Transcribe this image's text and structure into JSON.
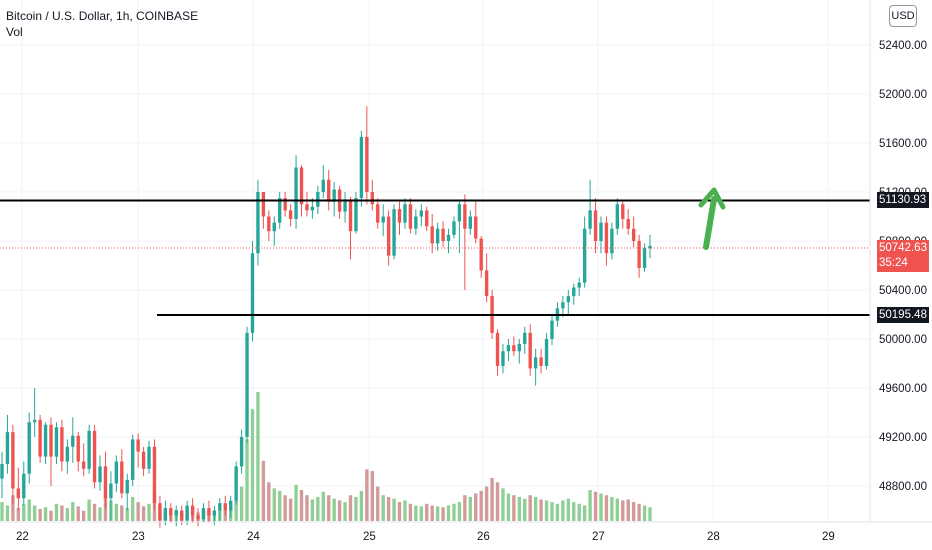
{
  "legend": {
    "title": "Bitcoin / U.S. Dollar, 1h, COINBASE",
    "volume_label": "Vol"
  },
  "axis": {
    "currency_button": "USD",
    "y_ticks": [
      "52400.00",
      "52000.00",
      "51600.00",
      "51200.00",
      "50800.00",
      "50400.00",
      "50000.00",
      "49600.00",
      "49200.00",
      "48800.00"
    ],
    "x_ticks": [
      "22",
      "23",
      "24",
      "25",
      "26",
      "27",
      "28",
      "29"
    ]
  },
  "price_tags": {
    "resistance": "51130.93",
    "current_price": "50742.63",
    "countdown": "35:24",
    "support": "50195.48"
  },
  "colors": {
    "up": "#26a69a",
    "down": "#ef5350",
    "vol_up": "#8fcf95",
    "vol_down": "#d49a9a",
    "drawing": "#000000",
    "arrow": "#4caf50"
  },
  "chart_data": {
    "type": "candlestick",
    "y_range": [
      48400,
      52600
    ],
    "x_range_days": [
      "22",
      "23",
      "24",
      "25",
      "26",
      "27",
      "28",
      "29"
    ],
    "horizontal_levels": [
      51130.93,
      50195.48
    ],
    "current_price": 50742.63,
    "candles": [
      [
        48860,
        49080,
        48700,
        48980
      ],
      [
        48980,
        49380,
        48900,
        49240
      ],
      [
        49240,
        49300,
        48650,
        48780
      ],
      [
        48780,
        48950,
        48600,
        48700
      ],
      [
        48700,
        49000,
        48640,
        48900
      ],
      [
        48900,
        49400,
        48820,
        49320
      ],
      [
        49320,
        49600,
        49200,
        49340
      ],
      [
        49340,
        49380,
        48990,
        49040
      ],
      [
        49040,
        49320,
        48980,
        49300
      ],
      [
        49300,
        49360,
        48800,
        49040
      ],
      [
        49040,
        49320,
        48980,
        49280
      ],
      [
        49280,
        49340,
        48920,
        49000
      ],
      [
        49000,
        49180,
        48900,
        49120
      ],
      [
        49120,
        49360,
        48990,
        49210
      ],
      [
        49210,
        49240,
        48920,
        49000
      ],
      [
        49000,
        49150,
        48880,
        48940
      ],
      [
        48940,
        49300,
        48900,
        49250
      ],
      [
        49250,
        49300,
        48780,
        48830
      ],
      [
        48830,
        49050,
        48760,
        48960
      ],
      [
        48960,
        49080,
        48620,
        48700
      ],
      [
        48700,
        48920,
        48520,
        48820
      ],
      [
        48820,
        49050,
        48750,
        49000
      ],
      [
        49000,
        49100,
        48700,
        48740
      ],
      [
        48740,
        48900,
        48600,
        48850
      ],
      [
        48850,
        49220,
        48800,
        49180
      ],
      [
        49180,
        49230,
        48950,
        49080
      ],
      [
        49080,
        49120,
        48880,
        48940
      ],
      [
        48940,
        49170,
        48900,
        49120
      ],
      [
        49120,
        49180,
        48600,
        48660
      ],
      [
        48660,
        48720,
        48460,
        48520
      ],
      [
        48520,
        48680,
        48480,
        48620
      ],
      [
        48620,
        48660,
        48500,
        48560
      ],
      [
        48560,
        48640,
        48470,
        48600
      ],
      [
        48600,
        48640,
        48480,
        48520
      ],
      [
        48520,
        48680,
        48480,
        48640
      ],
      [
        48640,
        48700,
        48500,
        48560
      ],
      [
        48560,
        48620,
        48470,
        48530
      ],
      [
        48530,
        48660,
        48500,
        48620
      ],
      [
        48620,
        48680,
        48500,
        48560
      ],
      [
        48560,
        48640,
        48480,
        48600
      ],
      [
        48600,
        48700,
        48520,
        48660
      ],
      [
        48660,
        48720,
        48560,
        48600
      ],
      [
        48600,
        48720,
        48540,
        48680
      ],
      [
        48680,
        49000,
        48650,
        48960
      ],
      [
        48960,
        49260,
        48900,
        49200
      ],
      [
        49200,
        50100,
        49150,
        50050
      ],
      [
        50050,
        50800,
        49980,
        50700
      ],
      [
        50700,
        51300,
        50600,
        51200
      ],
      [
        51200,
        51200,
        50900,
        51000
      ],
      [
        51000,
        51050,
        50800,
        50880
      ],
      [
        50880,
        51000,
        50760,
        50950
      ],
      [
        50950,
        51200,
        50900,
        51150
      ],
      [
        51150,
        51200,
        51000,
        51050
      ],
      [
        51050,
        51100,
        50920,
        50980
      ],
      [
        50980,
        51500,
        50900,
        51400
      ],
      [
        51400,
        51420,
        51000,
        51100
      ],
      [
        51100,
        51200,
        51000,
        51050
      ],
      [
        51050,
        51150,
        50980,
        51080
      ],
      [
        51080,
        51250,
        51020,
        51200
      ],
      [
        51200,
        51420,
        51150,
        51300
      ],
      [
        51300,
        51380,
        51050,
        51120
      ],
      [
        51120,
        51280,
        51000,
        51220
      ],
      [
        51220,
        51250,
        50980,
        51040
      ],
      [
        51040,
        51200,
        50950,
        51140
      ],
      [
        51140,
        51160,
        50650,
        50880
      ],
      [
        50880,
        51200,
        50860,
        51150
      ],
      [
        51150,
        51700,
        51080,
        51650
      ],
      [
        51650,
        51900,
        51100,
        51200
      ],
      [
        51200,
        51300,
        51050,
        51100
      ],
      [
        51100,
        51150,
        50900,
        50950
      ],
      [
        50950,
        51100,
        50840,
        51000
      ],
      [
        51000,
        51050,
        50600,
        50680
      ],
      [
        50680,
        51100,
        50650,
        51060
      ],
      [
        51060,
        51120,
        50850,
        50950
      ],
      [
        50950,
        51150,
        50900,
        51100
      ],
      [
        51100,
        51150,
        50860,
        50900
      ],
      [
        50900,
        51060,
        50850,
        51000
      ],
      [
        51000,
        51100,
        50920,
        51050
      ],
      [
        51050,
        51080,
        50880,
        50920
      ],
      [
        50920,
        51020,
        50700,
        50780
      ],
      [
        50780,
        50950,
        50720,
        50900
      ],
      [
        50900,
        50960,
        50750,
        50800
      ],
      [
        50800,
        50900,
        50700,
        50850
      ],
      [
        50850,
        51000,
        50820,
        50960
      ],
      [
        50960,
        51140,
        50700,
        51100
      ],
      [
        51100,
        51180,
        50400,
        50900
      ],
      [
        50900,
        51050,
        50850,
        51000
      ],
      [
        51000,
        51130,
        50780,
        50820
      ],
      [
        50820,
        50840,
        50500,
        50560
      ],
      [
        50560,
        50700,
        50300,
        50350
      ],
      [
        50350,
        50400,
        50000,
        50050
      ],
      [
        50050,
        50080,
        49700,
        49780
      ],
      [
        49780,
        49960,
        49720,
        49900
      ],
      [
        49900,
        50000,
        49820,
        49950
      ],
      [
        49950,
        50020,
        49860,
        49900
      ],
      [
        49900,
        50000,
        49800,
        49960
      ],
      [
        49960,
        50100,
        49880,
        50050
      ],
      [
        50050,
        50120,
        49700,
        49760
      ],
      [
        49760,
        49920,
        49620,
        49850
      ],
      [
        49850,
        49920,
        49720,
        49780
      ],
      [
        49780,
        50050,
        49750,
        50000
      ],
      [
        50000,
        50200,
        49950,
        50150
      ],
      [
        50150,
        50300,
        50100,
        50250
      ],
      [
        50250,
        50350,
        50180,
        50300
      ],
      [
        50300,
        50400,
        50200,
        50350
      ],
      [
        50350,
        50450,
        50280,
        50420
      ],
      [
        50420,
        50500,
        50350,
        50460
      ],
      [
        50460,
        51000,
        50420,
        50900
      ],
      [
        50900,
        51300,
        50850,
        51050
      ],
      [
        51050,
        51150,
        50700,
        50800
      ],
      [
        50800,
        51000,
        50700,
        50950
      ],
      [
        50950,
        51000,
        50600,
        50700
      ],
      [
        50700,
        50950,
        50650,
        50900
      ],
      [
        50900,
        51150,
        50850,
        51100
      ],
      [
        51100,
        51120,
        50900,
        50980
      ],
      [
        50980,
        51060,
        50850,
        50900
      ],
      [
        50900,
        51000,
        50750,
        50800
      ],
      [
        50800,
        50850,
        50500,
        50580
      ],
      [
        50580,
        50780,
        50550,
        50740
      ],
      [
        50740,
        50850,
        50660,
        50760
      ]
    ],
    "volumes": [
      22,
      18,
      30,
      15,
      20,
      25,
      18,
      14,
      16,
      12,
      20,
      18,
      15,
      22,
      17,
      12,
      25,
      20,
      16,
      30,
      24,
      20,
      18,
      15,
      28,
      22,
      17,
      20,
      35,
      18,
      14,
      12,
      13,
      10,
      12,
      11,
      10,
      13,
      12,
      10,
      14,
      12,
      15,
      24,
      40,
      95,
      130,
      150,
      70,
      45,
      38,
      35,
      30,
      26,
      42,
      36,
      30,
      25,
      28,
      34,
      30,
      26,
      24,
      22,
      30,
      28,
      35,
      60,
      58,
      40,
      30,
      28,
      26,
      22,
      24,
      20,
      18,
      17,
      20,
      18,
      17,
      16,
      18,
      20,
      22,
      30,
      28,
      32,
      35,
      40,
      50,
      45,
      38,
      32,
      30,
      28,
      26,
      30,
      28,
      25,
      24,
      22,
      20,
      24,
      26,
      22,
      20,
      18,
      36,
      34,
      32,
      30,
      28,
      26,
      24,
      25,
      22,
      20,
      18,
      16
    ]
  }
}
